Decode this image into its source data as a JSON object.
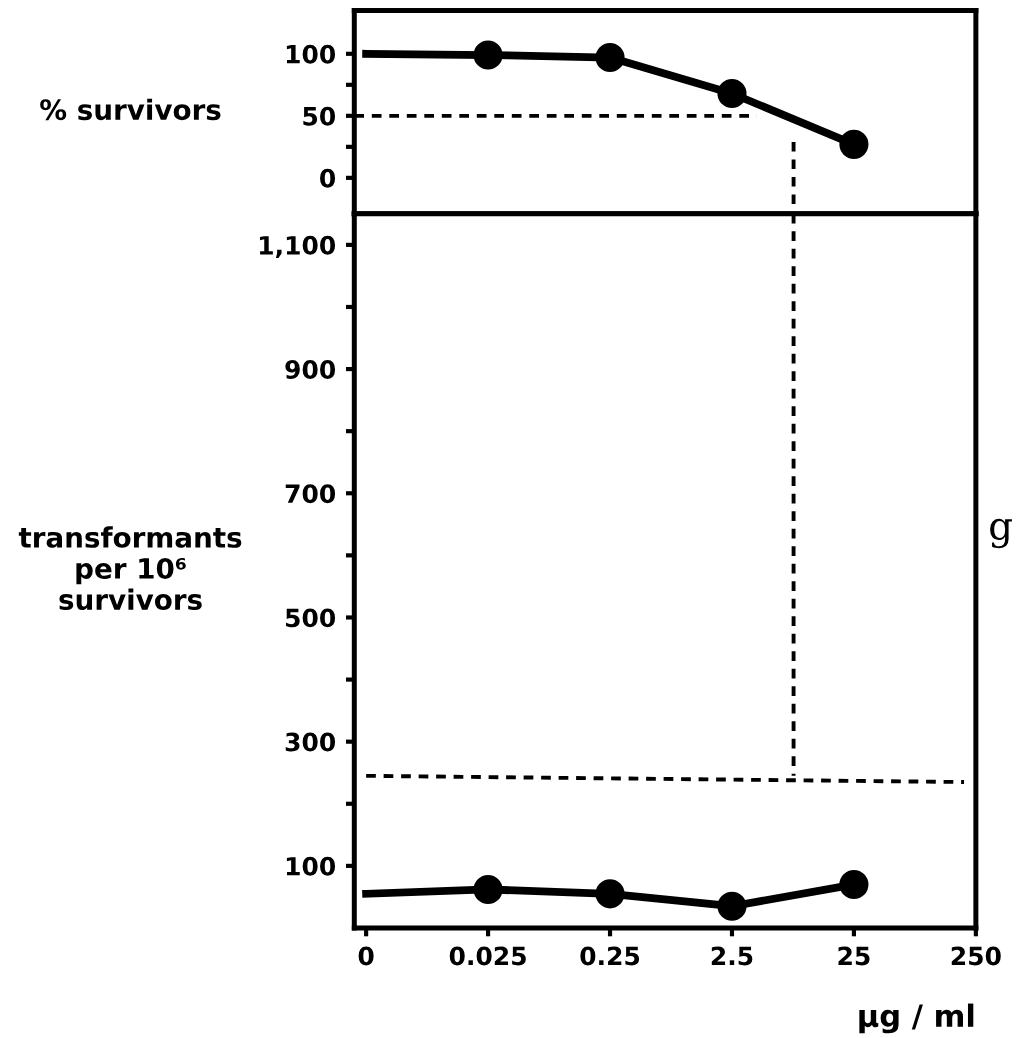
{
  "chart_data": [
    {
      "type": "line",
      "ylabel": "% survivors",
      "log": "x",
      "tick_labels": "y",
      "grid": false,
      "xlim": [
        0.002,
        250
      ],
      "ylim": [
        -29,
        135
      ],
      "yticks": [
        0,
        {
          "value": 25,
          "label": null
        },
        50,
        {
          "value": 75,
          "label": null
        },
        100
      ],
      "series": [
        {
          "color": "#000000",
          "marker": "none",
          "line_style": "solid",
          "x": [
            0.0025,
            0.025,
            0.25,
            2.5,
            25
          ],
          "values": [
            100,
            99,
            97,
            68,
            27
          ]
        },
        {
          "type": "scatter",
          "color": "#000000",
          "marker": "circle",
          "x": [
            0.025,
            0.25,
            2.5,
            25
          ],
          "values": [
            99,
            97,
            68,
            27
          ]
        },
        {
          "color": "#000000",
          "marker": "none",
          "line_style": "dashed",
          "x": [
            0.002,
            4
          ],
          "values": [
            50,
            50
          ]
        },
        {
          "color": "#000000",
          "marker": "none",
          "line_style": "dashed",
          "x": [
            8,
            8
          ],
          "values": [
            29,
            -29
          ]
        }
      ]
    },
    {
      "type": "line",
      "ylabel": "transformants\nper 10⁶\nsurvivors",
      "xlabel": "μg / ml",
      "log": "x",
      "grid": false,
      "annotations": [
        "g"
      ],
      "xlim": [
        0.002,
        250
      ],
      "xticks": [
        {
          "value": 0.0025,
          "label": "0"
        },
        0.025,
        0.25,
        2.5,
        25,
        250
      ],
      "ylim": [
        0,
        1150
      ],
      "yticks": [
        100,
        {
          "value": 200,
          "label": null
        },
        300,
        {
          "value": 400,
          "label": null
        },
        500,
        {
          "value": 600,
          "label": null
        },
        700,
        {
          "value": 800,
          "label": null
        },
        900,
        {
          "value": 1000,
          "label": null
        },
        {
          "value": 1100,
          "label": "1,100"
        }
      ],
      "series": [
        {
          "color": "#000000",
          "marker": "none",
          "line_style": "solid",
          "x": [
            0.0025,
            0.025,
            0.25,
            2.5,
            25
          ],
          "values": [
            55,
            62,
            55,
            35,
            70
          ]
        },
        {
          "type": "scatter",
          "color": "#000000",
          "marker": "circle",
          "x": [
            0.025,
            0.25,
            2.5,
            25
          ],
          "values": [
            62,
            55,
            35,
            70
          ]
        },
        {
          "color": "#000000",
          "marker": "none",
          "line_style": "dashed",
          "x": [
            8,
            8
          ],
          "values": [
            1150,
            245
          ]
        },
        {
          "color": "#000000",
          "marker": "none",
          "line_style": "dashed",
          "x": [
            0.0025,
            200
          ],
          "values": [
            245,
            235
          ]
        }
      ]
    }
  ]
}
